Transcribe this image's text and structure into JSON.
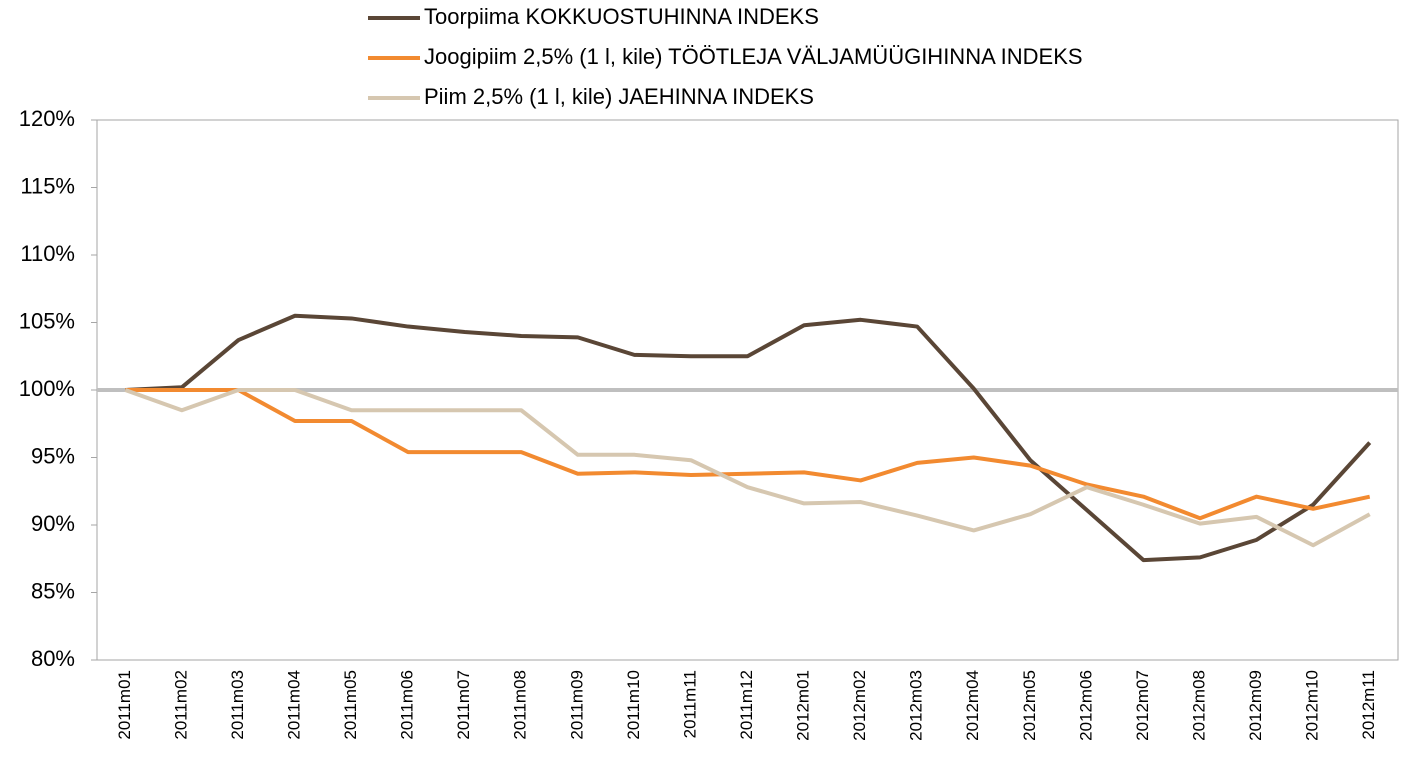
{
  "chart_data": {
    "type": "line",
    "categories": [
      "2011m01",
      "2011m02",
      "2011m03",
      "2011m04",
      "2011m05",
      "2011m06",
      "2011m07",
      "2011m08",
      "2011m09",
      "2011m10",
      "2011m11",
      "2011m12",
      "2012m01",
      "2012m02",
      "2012m03",
      "2012m04",
      "2012m05",
      "2012m06",
      "2012m07",
      "2012m08",
      "2012m09",
      "2012m10",
      "2012m11"
    ],
    "series": [
      {
        "name": "Toorpiima KOKKUOSTUHINNA INDEKS",
        "color": "#5a4636",
        "values": [
          100,
          100.2,
          103.7,
          105.5,
          105.3,
          104.7,
          104.3,
          104.0,
          103.9,
          102.6,
          102.5,
          102.5,
          104.8,
          105.2,
          104.7,
          100.1,
          94.8,
          91.1,
          87.4,
          87.6,
          88.9,
          91.5,
          96.1
        ]
      },
      {
        "name": "Joogipiim 2,5% (1 l, kile) TÖÖTLEJA VÄLJAMÜÜGIHINNA INDEKS",
        "color": "#f28a30",
        "values": [
          100,
          100,
          100,
          97.7,
          97.7,
          95.4,
          95.4,
          95.4,
          93.8,
          93.9,
          93.7,
          93.8,
          93.9,
          93.3,
          94.6,
          95.0,
          94.4,
          93.0,
          92.1,
          90.5,
          92.1,
          91.2,
          92.1
        ]
      },
      {
        "name": "Piim 2,5% (1 l, kile) JAEHINNA INDEKS",
        "color": "#d6c7b0",
        "values": [
          100,
          98.5,
          100,
          100,
          98.5,
          98.5,
          98.5,
          98.5,
          95.2,
          95.2,
          94.8,
          92.8,
          91.6,
          91.7,
          90.7,
          89.6,
          90.8,
          92.8,
          91.5,
          90.1,
          90.6,
          88.5,
          90.8
        ]
      }
    ],
    "reference_line": 100,
    "ylim": [
      80,
      120
    ],
    "yticks": [
      {
        "value": 80,
        "label": "80%"
      },
      {
        "value": 85,
        "label": "85%"
      },
      {
        "value": 90,
        "label": "90%"
      },
      {
        "value": 95,
        "label": "95%"
      },
      {
        "value": 100,
        "label": "100%"
      },
      {
        "value": 105,
        "label": "105%"
      },
      {
        "value": 110,
        "label": "110%"
      },
      {
        "value": 115,
        "label": "115%"
      },
      {
        "value": 120,
        "label": "120%"
      }
    ],
    "grid": false,
    "legend": "top"
  }
}
